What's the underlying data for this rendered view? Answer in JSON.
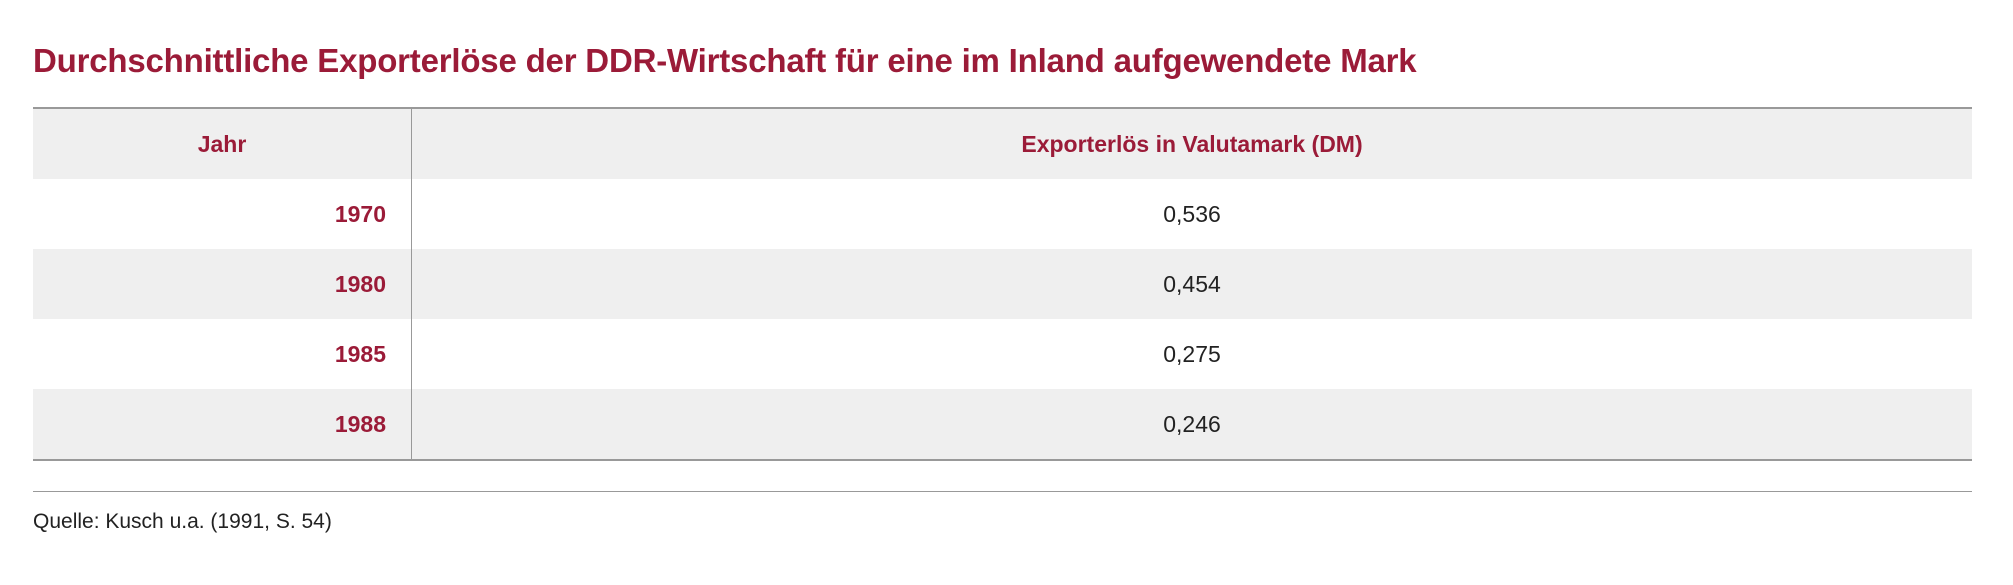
{
  "title": "Durchschnittliche Exporterlöse der DDR-Wirtschaft für eine im Inland aufgewendete Mark",
  "table": {
    "header": [
      "Jahr",
      "Exporterlös in Valutamark (DM)"
    ],
    "rows": [
      [
        "1970",
        "0,536"
      ],
      [
        "1980",
        "0,454"
      ],
      [
        "1985",
        "0,275"
      ],
      [
        "1988",
        "0,246"
      ]
    ]
  },
  "source": "Quelle: Kusch u.a. (1991, S. 54)"
}
